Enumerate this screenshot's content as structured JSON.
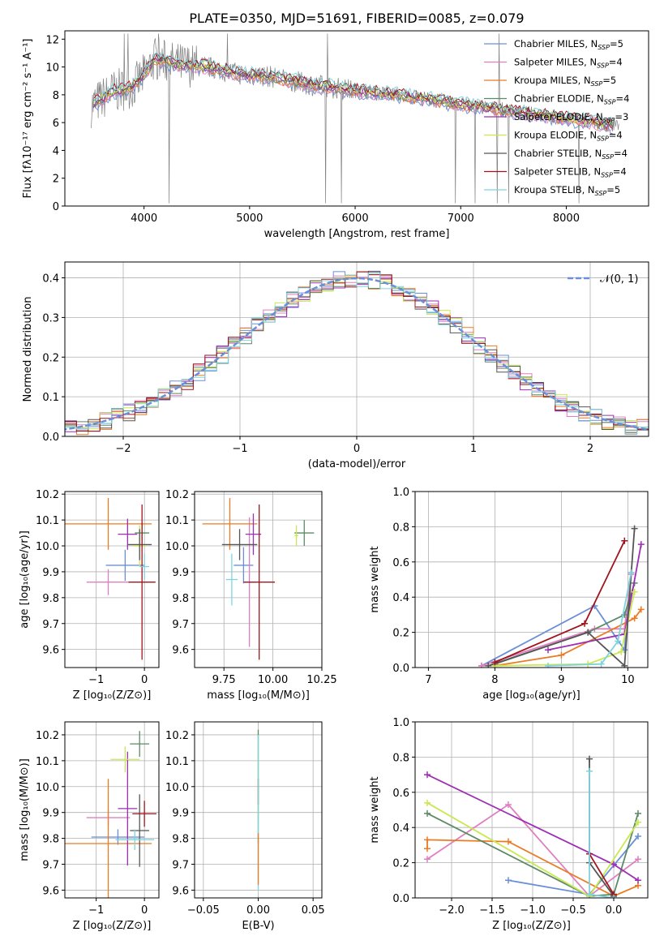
{
  "figure": {
    "title": "PLATE=0350, MJD=51691, FIBERID=0085, z=0.079"
  },
  "series_colors": [
    "#6a8fd8",
    "#e07fc0",
    "#ea7b25",
    "#5c8a66",
    "#9c2fb3",
    "#c9e84e",
    "#555555",
    "#a1141d",
    "#7fd3df"
  ],
  "chart_data": [
    {
      "id": "spectrum",
      "type": "line",
      "xlabel": "wavelength [Angstrom, rest frame]",
      "ylabel": "Flux [fλ10⁻¹⁷ erg cm⁻² s⁻¹ A⁻¹]",
      "xlim": [
        3250,
        8780
      ],
      "ylim": [
        0,
        12.6
      ],
      "xticks": [
        "4000",
        "5000",
        "6000",
        "7000",
        "8000"
      ],
      "yticks": [
        "0",
        "2",
        "4",
        "6",
        "8",
        "10",
        "12"
      ],
      "legend_position": "top-right",
      "data_color": "#808080",
      "continuum": [
        [
          3500,
          7.2
        ],
        [
          3700,
          8.2
        ],
        [
          3900,
          8.6
        ],
        [
          4000,
          9.4
        ],
        [
          4100,
          10.6
        ],
        [
          4300,
          10.2
        ],
        [
          4600,
          10.0
        ],
        [
          4900,
          9.5
        ],
        [
          5200,
          9.3
        ],
        [
          5600,
          8.7
        ],
        [
          6000,
          8.3
        ],
        [
          6500,
          7.9
        ],
        [
          7000,
          7.3
        ],
        [
          7500,
          6.8
        ],
        [
          8000,
          6.3
        ],
        [
          8500,
          5.7
        ]
      ],
      "series": [
        {
          "name": "Chabrier MILES, N",
          "sub": "SSP",
          "suffix": "=5"
        },
        {
          "name": "Salpeter MILES, N",
          "sub": "SSP",
          "suffix": "=4"
        },
        {
          "name": "Kroupa MILES, N",
          "sub": "SSP",
          "suffix": "=5"
        },
        {
          "name": "Chabrier ELODIE, N",
          "sub": "SSP",
          "suffix": "=4"
        },
        {
          "name": "Salpeter ELODIE, N",
          "sub": "SSP",
          "suffix": "=3"
        },
        {
          "name": "Kroupa ELODIE, N",
          "sub": "SSP",
          "suffix": "=4"
        },
        {
          "name": "Chabrier STELIB, N",
          "sub": "SSP",
          "suffix": "=4"
        },
        {
          "name": "Salpeter STELIB, N",
          "sub": "SSP",
          "suffix": "=4"
        },
        {
          "name": "Kroupa STELIB, N",
          "sub": "SSP",
          "suffix": "=5"
        }
      ]
    },
    {
      "id": "residuals",
      "type": "histogram",
      "xlabel": "(data-model)/error",
      "ylabel": "Normed distribution",
      "xlim": [
        -2.5,
        2.5
      ],
      "ylim": [
        0,
        0.44
      ],
      "xticks": [
        "−2",
        "−1",
        "0",
        "1",
        "2"
      ],
      "yticks": [
        "0.0",
        "0.1",
        "0.2",
        "0.3",
        "0.4"
      ],
      "grid": true,
      "legend_label": "𝒩(0, 1)",
      "legend_position": "top-right",
      "normal_color": "#6a8fd8"
    },
    {
      "id": "age_vs_Z",
      "type": "scatter",
      "xlabel": "Z [log₁₀(Z/Z⊙)]",
      "ylabel": "age  [log₁₀(age/yr)]",
      "xlim": [
        -1.65,
        0.3
      ],
      "ylim": [
        9.53,
        10.21
      ],
      "xticks": [
        "−1",
        "0"
      ],
      "yticks": [
        "9.6",
        "9.7",
        "9.8",
        "9.9",
        "10.0",
        "10.1",
        "10.2"
      ],
      "grid": true,
      "points": [
        {
          "s": 0,
          "x": -0.4,
          "xerr": 0.4,
          "y": 9.925,
          "yerr": 0.06
        },
        {
          "s": 1,
          "x": -0.75,
          "xerr": 0.45,
          "y": 9.86,
          "yerr": 0.05
        },
        {
          "s": 2,
          "x": -0.75,
          "xerr": 0.9,
          "y": 10.085,
          "yerr": 0.1
        },
        {
          "s": 3,
          "x": -0.05,
          "xerr": 0.15,
          "y": 10.05,
          "yerr": 0.04
        },
        {
          "s": 4,
          "x": -0.35,
          "xerr": 0.2,
          "y": 10.045,
          "yerr": 0.06
        },
        {
          "s": 5,
          "x": -0.1,
          "xerr": 0.12,
          "y": 10.0,
          "yerr": 0.08
        },
        {
          "s": 6,
          "x": -0.1,
          "xerr": 0.25,
          "y": 10.005,
          "yerr": 0.06
        },
        {
          "s": 7,
          "x": -0.05,
          "xerr": 0.28,
          "y": 9.86,
          "yerr": 0.3
        },
        {
          "s": 8,
          "x": 0.0,
          "xerr": 0.1,
          "y": 9.92,
          "yerr": 0.05
        }
      ]
    },
    {
      "id": "age_vs_mass",
      "type": "scatter",
      "xlabel": "mass [log₁₀(M/M⊙)]",
      "xlim": [
        9.6,
        10.25
      ],
      "ylim": [
        9.53,
        10.21
      ],
      "xticks": [
        "9.75",
        "10.00",
        "10.25"
      ],
      "yticks": [
        "9.6",
        "9.7",
        "9.8",
        "9.9",
        "10.0",
        "10.1",
        "10.2"
      ],
      "grid": true,
      "points": [
        {
          "s": 0,
          "x": 9.85,
          "xerr": 0.05,
          "y": 9.925,
          "yerr": 0.07
        },
        {
          "s": 1,
          "x": 9.88,
          "xerr": 0.03,
          "y": 9.86,
          "yerr": 0.25
        },
        {
          "s": 2,
          "x": 9.78,
          "xerr": 0.14,
          "y": 10.085,
          "yerr": 0.1
        },
        {
          "s": 3,
          "x": 10.16,
          "xerr": 0.05,
          "y": 10.05,
          "yerr": 0.05
        },
        {
          "s": 4,
          "x": 9.9,
          "xerr": 0.04,
          "y": 10.045,
          "yerr": 0.08
        },
        {
          "s": 5,
          "x": 10.12,
          "xerr": 0.01,
          "y": 10.04,
          "yerr": 0.04
        },
        {
          "s": 6,
          "x": 9.83,
          "xerr": 0.09,
          "y": 10.005,
          "yerr": 0.06
        },
        {
          "s": 7,
          "x": 9.93,
          "xerr": 0.08,
          "y": 9.86,
          "yerr": 0.3
        },
        {
          "s": 8,
          "x": 9.79,
          "xerr": 0.03,
          "y": 9.87,
          "yerr": 0.1
        }
      ]
    },
    {
      "id": "weight_vs_age",
      "type": "line",
      "xlabel": "age  [log₁₀(age/yr)]",
      "ylabel": "mass weight",
      "xlim": [
        6.8,
        10.3
      ],
      "ylim": [
        0,
        1.0
      ],
      "xticks": [
        "7",
        "8",
        "9",
        "10"
      ],
      "yticks": [
        "0.0",
        "0.2",
        "0.4",
        "0.6",
        "0.8",
        "1.0"
      ],
      "grid": true,
      "series": [
        {
          "s": 0,
          "x": [
            7.8,
            9.5,
            9.95,
            10.05
          ],
          "y": [
            0.01,
            0.35,
            0.1,
            0.54
          ]
        },
        {
          "s": 1,
          "x": [
            7.8,
            9.5,
            9.95,
            10.05
          ],
          "y": [
            0.01,
            0.22,
            0.22,
            0.53
          ]
        },
        {
          "s": 2,
          "x": [
            8.0,
            9.0,
            10.1,
            10.2
          ],
          "y": [
            0.01,
            0.07,
            0.28,
            0.33
          ]
        },
        {
          "s": 3,
          "x": [
            8.0,
            9.4,
            9.95,
            10.1
          ],
          "y": [
            0.02,
            0.2,
            0.3,
            0.48
          ]
        },
        {
          "s": 4,
          "x": [
            8.8,
            9.95,
            10.2
          ],
          "y": [
            0.1,
            0.19,
            0.7
          ]
        },
        {
          "s": 5,
          "x": [
            8.0,
            9.4,
            9.9,
            10.1
          ],
          "y": [
            0.01,
            0.02,
            0.09,
            0.43
          ]
        },
        {
          "s": 6,
          "x": [
            7.9,
            9.4,
            9.95,
            10.1
          ],
          "y": [
            0.01,
            0.2,
            0.01,
            0.79
          ]
        },
        {
          "s": 7,
          "x": [
            8.0,
            9.35,
            9.95
          ],
          "y": [
            0.03,
            0.25,
            0.72
          ]
        },
        {
          "s": 8,
          "x": [
            8.8,
            9.6,
            9.85,
            10.05
          ],
          "y": [
            0.01,
            0.02,
            0.15,
            0.54
          ]
        }
      ]
    },
    {
      "id": "mass_vs_Z",
      "type": "scatter",
      "xlabel": "Z [log₁₀(Z/Z⊙)]",
      "ylabel": "mass [log₁₀(M/M⊙)]",
      "xlim": [
        -1.65,
        0.3
      ],
      "ylim": [
        9.57,
        10.25
      ],
      "xticks": [
        "−1",
        "0"
      ],
      "yticks": [
        "9.6",
        "9.7",
        "9.8",
        "9.9",
        "10.0",
        "10.1",
        "10.2"
      ],
      "grid": true,
      "points": [
        {
          "s": 0,
          "x": -0.55,
          "xerr": 0.55,
          "y": 9.805,
          "yerr": 0.03
        },
        {
          "s": 1,
          "x": -0.75,
          "xerr": 0.45,
          "y": 9.88,
          "yerr": 0.03
        },
        {
          "s": 2,
          "x": -0.75,
          "xerr": 0.9,
          "y": 9.78,
          "yerr": 0.25
        },
        {
          "s": 3,
          "x": -0.1,
          "xerr": 0.2,
          "y": 10.165,
          "yerr": 0.05
        },
        {
          "s": 4,
          "x": -0.35,
          "xerr": 0.2,
          "y": 9.915,
          "yerr": 0.22
        },
        {
          "s": 5,
          "x": -0.4,
          "xerr": 0.3,
          "y": 10.105,
          "yerr": 0.05
        },
        {
          "s": 6,
          "x": -0.1,
          "xerr": 0.2,
          "y": 9.83,
          "yerr": 0.14
        },
        {
          "s": 7,
          "x": 0.0,
          "xerr": 0.25,
          "y": 9.895,
          "yerr": 0.05
        },
        {
          "s": 8,
          "x": -0.2,
          "xerr": 0.4,
          "y": 9.795,
          "yerr": 0.04
        }
      ]
    },
    {
      "id": "mass_vs_ebv",
      "type": "scatter",
      "xlabel": "E(B-V)",
      "xlim": [
        -0.058,
        0.058
      ],
      "ylim": [
        9.57,
        10.25
      ],
      "xticks": [
        "−0.05",
        "0.00",
        "0.05"
      ],
      "yticks": [
        "9.6",
        "9.7",
        "9.8",
        "9.9",
        "10.0",
        "10.1",
        "10.2"
      ],
      "grid": true,
      "points": [
        {
          "s": 3,
          "x": 0.0,
          "xerr": 0,
          "y": 10.0,
          "yerr": 0.22
        },
        {
          "s": 5,
          "x": 0.0,
          "xerr": 0,
          "y": 10.02,
          "yerr": 0.15
        },
        {
          "s": 7,
          "x": 0.0,
          "xerr": 0,
          "y": 9.98,
          "yerr": 0.05
        },
        {
          "s": 8,
          "x": 0.0,
          "xerr": 0,
          "y": 9.9,
          "yerr": 0.3
        },
        {
          "s": 2,
          "x": 0.0,
          "xerr": 0,
          "y": 9.72,
          "yerr": 0.1
        }
      ]
    },
    {
      "id": "weight_vs_Z",
      "type": "line",
      "xlabel": "Z [log₁₀(Z/Z⊙)]",
      "ylabel": "mass weight",
      "xlim": [
        -2.45,
        0.42
      ],
      "ylim": [
        0,
        1.0
      ],
      "xticks": [
        "−2.0",
        "−1.5",
        "−1.0",
        "−0.5",
        "0.0"
      ],
      "yticks": [
        "0.0",
        "0.2",
        "0.4",
        "0.6",
        "0.8",
        "1.0"
      ],
      "grid": true,
      "series": [
        {
          "s": 0,
          "x": [
            -1.3,
            -0.3,
            0.3
          ],
          "y": [
            0.1,
            0.02,
            0.35
          ]
        },
        {
          "s": 1,
          "x": [
            -2.3,
            -1.3,
            -0.3,
            0.3
          ],
          "y": [
            0.22,
            0.53,
            0.01,
            0.22
          ]
        },
        {
          "s": 2,
          "x": [
            -2.3,
            -2.3,
            -1.3,
            0.0,
            0.3
          ],
          "y": [
            0.28,
            0.33,
            0.32,
            0.01,
            0.07
          ]
        },
        {
          "s": 3,
          "x": [
            -2.3,
            -0.3,
            0.0,
            0.3
          ],
          "y": [
            0.48,
            0.01,
            0.02,
            0.48
          ]
        },
        {
          "s": 4,
          "x": [
            -2.3,
            0.0,
            0.3
          ],
          "y": [
            0.7,
            0.19,
            0.1
          ]
        },
        {
          "s": 5,
          "x": [
            -2.3,
            -0.3,
            0.3
          ],
          "y": [
            0.54,
            0.01,
            0.43
          ]
        },
        {
          "s": 6,
          "x": [
            -0.3,
            -0.3,
            0.0
          ],
          "y": [
            0.79,
            0.2,
            0.01
          ]
        },
        {
          "s": 7,
          "x": [
            -0.3,
            0.0
          ],
          "y": [
            0.25,
            0.02
          ]
        },
        {
          "s": 8,
          "x": [
            -0.3,
            -0.3,
            0.0
          ],
          "y": [
            0.72,
            0.02,
            0.0
          ]
        }
      ]
    }
  ]
}
